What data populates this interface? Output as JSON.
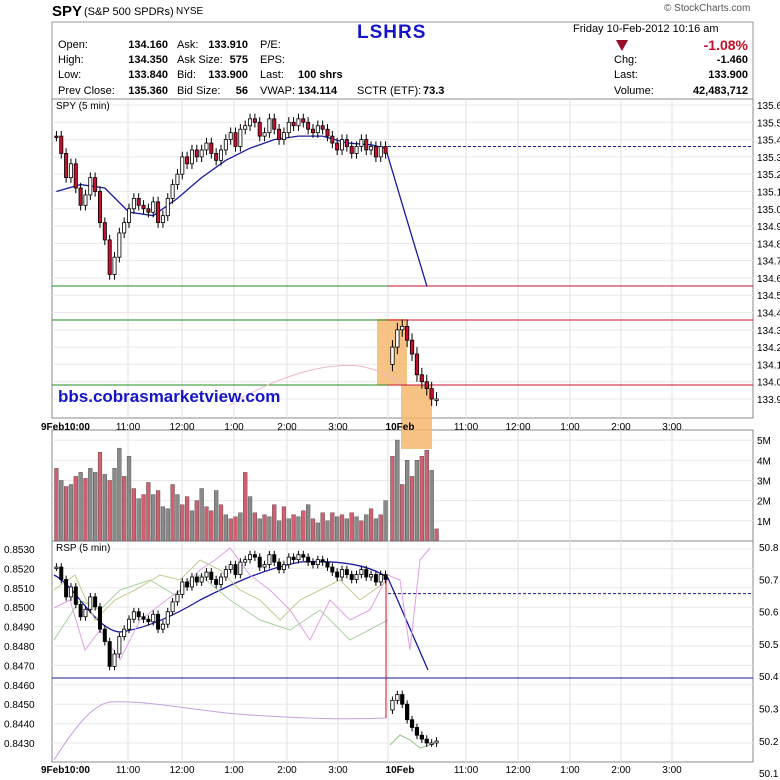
{
  "header": {
    "symbol": "SPY",
    "name": "(S&P 500 SPDRs)",
    "exchange": "NYSE",
    "title": "LSHRS",
    "date": "Friday  10-Feb-2012  10:16 am",
    "change_pct": "-1.08%",
    "source": "© StockCharts.com",
    "fields": [
      {
        "label": "Open:",
        "value": "134.160"
      },
      {
        "label": "High:",
        "value": "134.350"
      },
      {
        "label": "Low:",
        "value": "133.840"
      },
      {
        "label": "Prev Close:",
        "value": "135.360"
      },
      {
        "label": "Ask:",
        "value": "133.910"
      },
      {
        "label": "Ask Size:",
        "value": "575"
      },
      {
        "label": "Bid:",
        "value": "133.900"
      },
      {
        "label": "Bid Size:",
        "value": "56"
      },
      {
        "label": "P/E:",
        "value": ""
      },
      {
        "label": "EPS:",
        "value": ""
      },
      {
        "label": "Last:",
        "value": "100 shrs"
      },
      {
        "label": "VWAP:",
        "value": "134.114"
      },
      {
        "label": "SCTR (ETF):",
        "value": "73.3"
      },
      {
        "label": "Chg:",
        "value": "-1.460"
      },
      {
        "label": "Last:",
        "value": "133.900"
      },
      {
        "label": "Volume:",
        "value": "42,483,712"
      }
    ]
  },
  "watermark": "bbs.cobrasmarketview.com",
  "colors": {
    "up": "#ffffff",
    "down": "#c8102e",
    "ma": "#1a1aa0",
    "vol_down": "#d06070",
    "vol_up": "#8a8a8a",
    "box": "#f5b870",
    "green": "#228b22",
    "red": "#c8102e",
    "navy": "#1a1a90"
  },
  "chart_data": [
    {
      "type": "candlestick",
      "title": "SPY (5 min)",
      "y_ticks": [
        "135.60",
        "135.50",
        "135.40",
        "135.30",
        "135.20",
        "135.10",
        "135.00",
        "134.90",
        "134.80",
        "134.70",
        "134.60",
        "134.50",
        "134.40",
        "134.30",
        "134.20",
        "134.10",
        "134.00",
        "133.90"
      ],
      "ylim": [
        133.82,
        135.62
      ],
      "x_ticks": [
        "9Feb10:00",
        "11:00",
        "12:00",
        "1:00",
        "2:00",
        "3:00",
        "10Feb",
        "11:00",
        "12:00",
        "1:00",
        "2:00",
        "3:00"
      ],
      "levels": [
        {
          "y": 135.36,
          "style": "dashed",
          "color": "navy"
        },
        {
          "y": 134.55,
          "style": "solid",
          "color": "green"
        },
        {
          "y": 134.55,
          "style": "solid",
          "color": "red"
        },
        {
          "y": 134.37,
          "style": "solid",
          "color": "green"
        },
        {
          "y": 134.37,
          "style": "solid",
          "color": "red"
        },
        {
          "y": 133.98,
          "style": "solid",
          "color": "green"
        },
        {
          "y": 133.98,
          "style": "solid",
          "color": "red"
        }
      ],
      "day1_close": [
        135.42,
        135.32,
        135.18,
        135.26,
        135.12,
        135.02,
        135.08,
        135.18,
        135.1,
        134.92,
        134.82,
        134.62,
        134.72,
        134.86,
        134.92,
        135.0,
        135.06,
        135.02,
        135.0,
        134.98,
        135.04,
        134.92,
        134.96,
        135.06,
        135.14,
        135.2,
        135.3,
        135.26,
        135.34,
        135.3,
        135.34,
        135.38,
        135.32,
        135.28,
        135.34,
        135.4,
        135.44,
        135.36,
        135.46,
        135.48,
        135.52,
        135.5,
        135.42,
        135.44,
        135.52,
        135.46,
        135.4,
        135.44,
        135.5,
        135.48,
        135.52,
        135.5,
        135.46,
        135.44,
        135.48,
        135.46,
        135.42,
        135.38,
        135.34,
        135.4,
        135.36,
        135.32,
        135.36,
        135.4,
        135.34,
        135.36,
        135.3,
        135.36,
        135.32
      ],
      "day2_close": [
        134.2,
        134.3,
        134.32,
        134.24,
        134.16,
        134.04,
        134.0,
        133.96,
        133.9,
        133.9
      ],
      "ma": [
        {
          "x": 0,
          "y": 135.1
        },
        {
          "x": 5,
          "y": 135.14
        },
        {
          "x": 10,
          "y": 135.12
        },
        {
          "x": 15,
          "y": 134.98
        },
        {
          "x": 20,
          "y": 134.96
        },
        {
          "x": 25,
          "y": 135.06
        },
        {
          "x": 30,
          "y": 135.18
        },
        {
          "x": 35,
          "y": 135.28
        },
        {
          "x": 40,
          "y": 135.35
        },
        {
          "x": 45,
          "y": 135.4
        },
        {
          "x": 50,
          "y": 135.42
        },
        {
          "x": 55,
          "y": 135.42
        },
        {
          "x": 60,
          "y": 135.38
        },
        {
          "x": 65,
          "y": 135.37
        },
        {
          "x": 68,
          "y": 135.35
        },
        {
          "x": 70,
          "y": 135.05
        },
        {
          "x": 72,
          "y": 134.8
        },
        {
          "x": 74,
          "y": 134.55
        }
      ],
      "box1": {
        "x0": 70,
        "x1": 75,
        "y0": 134.37,
        "y1": 133.98
      },
      "box2": {
        "x0": 74,
        "x1": 79,
        "y0": 134.0,
        "y1": 133.7
      }
    },
    {
      "type": "bar",
      "title": "Volume",
      "y_ticks": [
        "5M",
        "4M",
        "3M",
        "2M",
        "1M"
      ],
      "ylim": [
        0,
        5.4
      ],
      "day1": [
        3.6,
        3.0,
        2.7,
        2.8,
        3.2,
        3.4,
        3.1,
        3.6,
        3.4,
        4.4,
        3.3,
        3.0,
        3.6,
        4.6,
        3.2,
        4.2,
        2.6,
        2.1,
        2.3,
        2.9,
        2.3,
        2.5,
        1.7,
        1.6,
        2.8,
        2.3,
        1.8,
        2.2,
        1.5,
        2.0,
        2.6,
        1.7,
        1.5,
        2.5,
        1.8,
        1.3,
        1.1,
        1.2,
        1.4,
        3.4,
        2.2,
        1.4,
        1.1,
        1.3,
        1.2,
        1.8,
        1.0,
        1.7,
        1.1,
        1.3,
        1.2,
        1.5,
        1.8,
        1.1,
        0.9,
        1.4,
        1.0,
        1.4,
        1.2,
        1.3,
        1.1,
        1.4,
        1.2,
        1.0,
        1.3,
        1.6,
        1.1,
        1.3,
        2.0
      ],
      "day1_up": [
        false,
        true,
        false,
        true,
        false,
        true,
        false,
        true,
        true,
        false,
        true,
        false,
        true,
        true,
        false,
        true,
        false,
        true,
        false,
        false,
        true,
        false,
        true,
        true,
        false,
        true,
        false,
        false,
        true,
        false,
        true,
        false,
        false,
        true,
        false,
        true,
        false,
        false,
        true,
        false,
        true,
        false,
        true,
        false,
        true,
        false,
        true,
        false,
        true,
        false,
        true,
        false,
        true,
        false,
        true,
        false,
        true,
        false,
        true,
        false,
        true,
        false,
        true,
        false,
        true,
        false,
        true,
        false,
        true
      ],
      "day2": [
        4.2,
        5.0,
        2.8,
        4.0,
        3.2,
        4.0,
        4.2,
        4.5,
        3.5,
        0.6
      ],
      "day2_up": [
        false,
        true,
        false,
        true,
        false,
        true,
        false,
        false,
        true,
        false
      ]
    },
    {
      "type": "candlestick",
      "title": "RSP (5 min)",
      "y_ticks": [
        "0.8530",
        "0.8520",
        "0.8510",
        "0.8500",
        "0.8490",
        "0.8480",
        "0.8470",
        "0.8460",
        "0.8450",
        "0.8440",
        "0.8430"
      ],
      "ylim": [
        0.84225,
        0.85335
      ],
      "y2_ticks": [
        "50.8",
        "50.7",
        "50.6",
        "50.5",
        "50.4",
        "50.3",
        "50.2",
        "50.1"
      ],
      "x_ticks": [
        "9Feb10:00",
        "11:00",
        "12:00",
        "1:00",
        "2:00",
        "3:00",
        "10Feb",
        "11:00",
        "12:00",
        "1:00",
        "2:00",
        "3:00"
      ],
      "levels": [
        {
          "y": 0.8507,
          "style": "dashed",
          "color": "navy"
        },
        {
          "y": 0.8463,
          "style": "solid",
          "color": "navy"
        }
      ]
    }
  ]
}
